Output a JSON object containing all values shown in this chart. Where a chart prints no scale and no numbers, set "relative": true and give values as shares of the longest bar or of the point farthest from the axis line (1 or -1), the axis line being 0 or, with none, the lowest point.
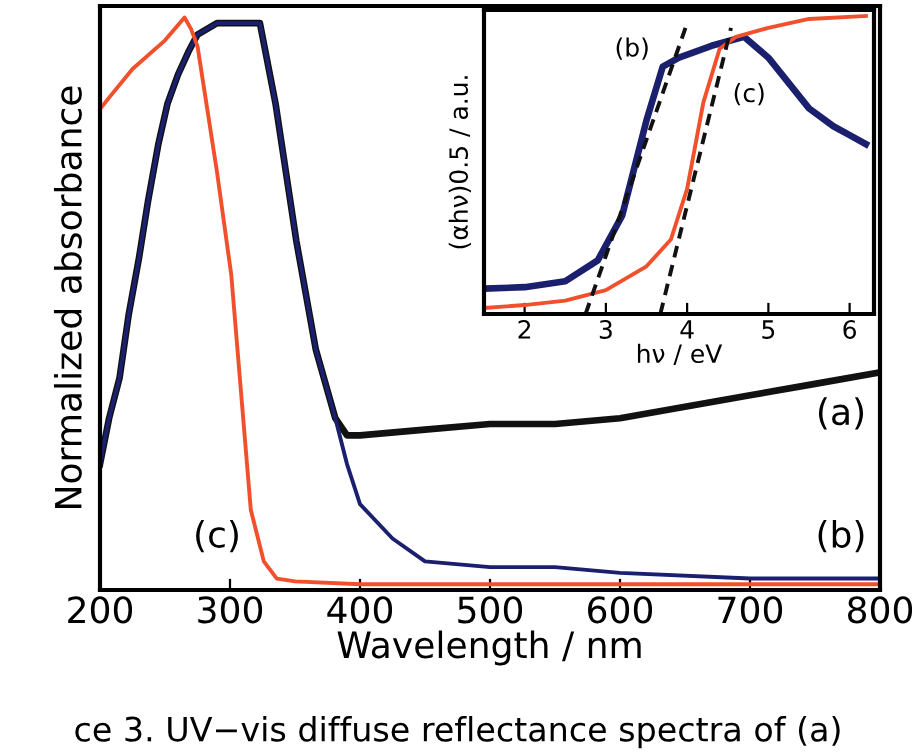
{
  "chart_data": [
    {
      "type": "line",
      "xlabel": "Wavelength / nm",
      "ylabel": "Normalized absorbance",
      "relative": true,
      "xlim": [
        200,
        800
      ],
      "xticks": [
        200,
        300,
        400,
        500,
        600,
        700,
        800
      ],
      "grid": false,
      "legend": false,
      "marker": "none",
      "line_style": "solid",
      "series": [
        {
          "color": "#111111",
          "x": [
            200,
            207,
            215,
            222,
            230,
            237,
            245,
            252,
            260,
            268,
            275,
            290,
            305,
            323,
            335,
            351,
            366,
            381,
            390,
            400,
            450,
            500,
            550,
            600,
            650,
            700,
            750,
            800
          ],
          "values": [
            0.22,
            0.3,
            0.37,
            0.48,
            0.58,
            0.68,
            0.78,
            0.85,
            0.9,
            0.94,
            0.97,
            0.99,
            0.99,
            0.99,
            0.85,
            0.61,
            0.42,
            0.3,
            0.27,
            0.27,
            0.28,
            0.29,
            0.29,
            0.3,
            0.32,
            0.34,
            0.36,
            0.38
          ]
        },
        {
          "color": "#1a1f6e",
          "x": [
            200,
            207,
            215,
            222,
            230,
            237,
            245,
            252,
            260,
            268,
            275,
            290,
            305,
            323,
            335,
            351,
            366,
            381,
            390,
            400,
            425,
            450,
            500,
            550,
            600,
            700,
            800
          ],
          "values": [
            0.22,
            0.3,
            0.37,
            0.48,
            0.58,
            0.68,
            0.78,
            0.85,
            0.9,
            0.94,
            0.97,
            0.99,
            0.99,
            0.99,
            0.85,
            0.61,
            0.42,
            0.3,
            0.22,
            0.15,
            0.09,
            0.05,
            0.04,
            0.04,
            0.03,
            0.02,
            0.02
          ]
        },
        {
          "color": "#f0502c",
          "x": [
            200,
            207,
            225,
            250,
            265,
            270,
            275,
            290,
            301,
            316,
            326,
            336,
            350,
            400,
            500,
            600,
            700,
            800
          ],
          "values": [
            0.84,
            0.86,
            0.91,
            0.96,
            1.0,
            0.98,
            0.95,
            0.73,
            0.55,
            0.14,
            0.05,
            0.02,
            0.015,
            0.01,
            0.01,
            0.01,
            0.01,
            0.01
          ]
        }
      ],
      "annotations": [
        "(a)",
        "(b)",
        "(c)",
        "ce 3. UV−vis diffuse reflectance spectra of (a)"
      ]
    },
    {
      "type": "line",
      "xlabel": "hν / eV",
      "ylabel": "(αhν)0.5 / a.u.",
      "relative": true,
      "xlim": [
        1.5,
        6.3
      ],
      "xticks": [
        2,
        3,
        4,
        5,
        6
      ],
      "grid": false,
      "legend": false,
      "marker": "none",
      "series": [
        {
          "color": "#1a1f6e",
          "x": [
            1.5,
            2.0,
            2.5,
            2.9,
            3.2,
            3.5,
            3.7,
            3.9,
            4.3,
            4.7,
            5.0,
            5.5,
            5.8,
            6.0,
            6.2
          ],
          "values": [
            0.085,
            0.09,
            0.11,
            0.18,
            0.33,
            0.65,
            0.83,
            0.86,
            0.9,
            0.93,
            0.86,
            0.69,
            0.63,
            0.6,
            0.57
          ],
          "line_style": "solid"
        },
        {
          "color": "#f0502c",
          "x": [
            1.5,
            2.0,
            2.5,
            3.0,
            3.5,
            3.8,
            4.0,
            4.2,
            4.4,
            4.6,
            5.0,
            5.5,
            6.2
          ],
          "values": [
            0.02,
            0.03,
            0.045,
            0.08,
            0.16,
            0.25,
            0.42,
            0.71,
            0.89,
            0.93,
            0.96,
            0.99,
            1.0
          ],
          "line_style": "solid"
        },
        {
          "color": "#111111",
          "x": [
            2.75,
            3.98
          ],
          "values": [
            0.0,
            0.96
          ],
          "line_style": "dashed"
        },
        {
          "color": "#111111",
          "x": [
            3.67,
            4.54
          ],
          "values": [
            0.0,
            0.96
          ],
          "line_style": "dashed"
        }
      ],
      "annotations": [
        "(b)",
        "(c)"
      ]
    }
  ]
}
